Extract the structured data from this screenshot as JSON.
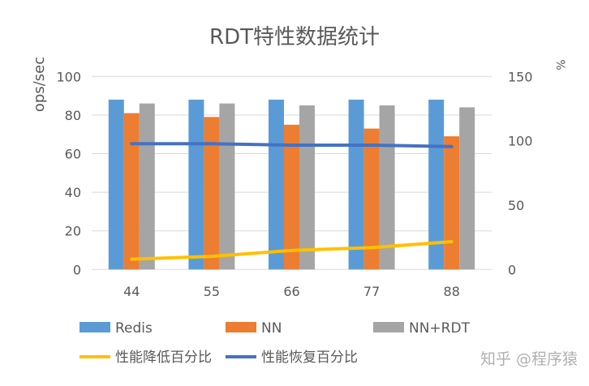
{
  "chart_data": {
    "type": "bar+line",
    "title": "RDT特性数据统计",
    "ylabel": "ops/sec",
    "y2label": "%",
    "categories": [
      "44",
      "55",
      "66",
      "77",
      "88"
    ],
    "ylim": [
      0,
      100
    ],
    "yticks": [
      "0",
      "20",
      "40",
      "60",
      "80",
      "100"
    ],
    "y2lim": [
      0,
      150
    ],
    "y2ticks": [
      "0",
      "50",
      "100",
      "150"
    ],
    "grid": true,
    "legend_position": "bottom",
    "bar_series": [
      {
        "name": "Redis",
        "color": "#5b9bd5",
        "values": [
          88,
          88,
          88,
          88,
          88
        ]
      },
      {
        "name": "NN",
        "color": "#ed7d31",
        "values": [
          81,
          79,
          75,
          73,
          69
        ]
      },
      {
        "name": "NN+RDT",
        "color": "#a5a5a5",
        "values": [
          86,
          86,
          85,
          85,
          84
        ]
      }
    ],
    "line_series": [
      {
        "name": "性能降低百分比",
        "color": "#ffc000",
        "axis": "right",
        "values": [
          8,
          10.2,
          14.8,
          17,
          21.6
        ]
      },
      {
        "name": "性能恢复百分比",
        "color": "#4472c4",
        "axis": "right",
        "values": [
          97.7,
          97.7,
          96.6,
          96.6,
          95.5
        ]
      }
    ]
  },
  "watermark": "知乎 @程序猿"
}
